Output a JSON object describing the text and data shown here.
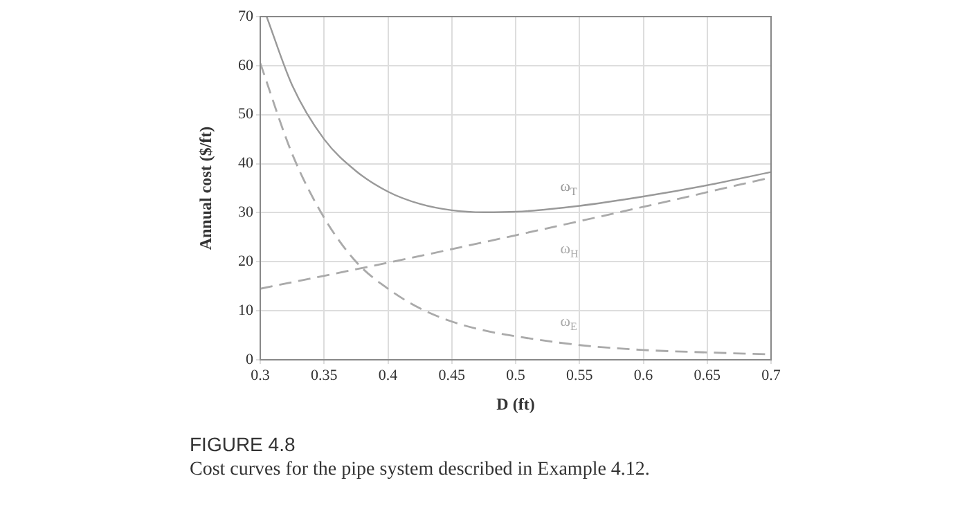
{
  "chart_data": {
    "type": "line",
    "xlabel": "D (ft)",
    "ylabel": "Annual cost ($/ft)",
    "xlim": [
      0.3,
      0.7
    ],
    "xticks": [
      0.3,
      0.35,
      0.4,
      0.45,
      0.5,
      0.55,
      0.6,
      0.65,
      0.7
    ],
    "ylim": [
      0,
      70
    ],
    "yticks": [
      0,
      10,
      20,
      30,
      40,
      50,
      60,
      70
    ],
    "grid": true,
    "legend": false,
    "marker": "none",
    "series": [
      {
        "name": "ω$_{T}$",
        "color": "#999999",
        "line_style": "solid",
        "x": [
          0.305,
          0.325,
          0.35,
          0.375,
          0.4,
          0.425,
          0.45,
          0.475,
          0.5,
          0.55,
          0.6,
          0.65,
          0.7
        ],
        "values": [
          70,
          56,
          45,
          38.5,
          34.3,
          31.8,
          30.5,
          30.1,
          30.2,
          31.4,
          33.3,
          35.6,
          38.3
        ]
      },
      {
        "name": "ω$_{H}$",
        "color": "#aaaaaa",
        "line_style": "dashed",
        "x": [
          0.3,
          0.4,
          0.5,
          0.6,
          0.7
        ],
        "values": [
          14.5,
          19.8,
          25.4,
          31.2,
          37.2
        ]
      },
      {
        "name": "ω$_{E}$",
        "color": "#aaaaaa",
        "line_style": "dashed",
        "x": [
          0.3,
          0.325,
          0.35,
          0.375,
          0.4,
          0.425,
          0.45,
          0.475,
          0.5,
          0.55,
          0.6,
          0.65,
          0.7
        ],
        "values": [
          60.5,
          42,
          29,
          20,
          14.5,
          10.5,
          7.8,
          6,
          4.8,
          3,
          2,
          1.5,
          1.1
        ]
      }
    ],
    "annotations": [
      "FIGURE 4.8",
      "Cost curves for the pipe system described in Example 4.12."
    ]
  }
}
